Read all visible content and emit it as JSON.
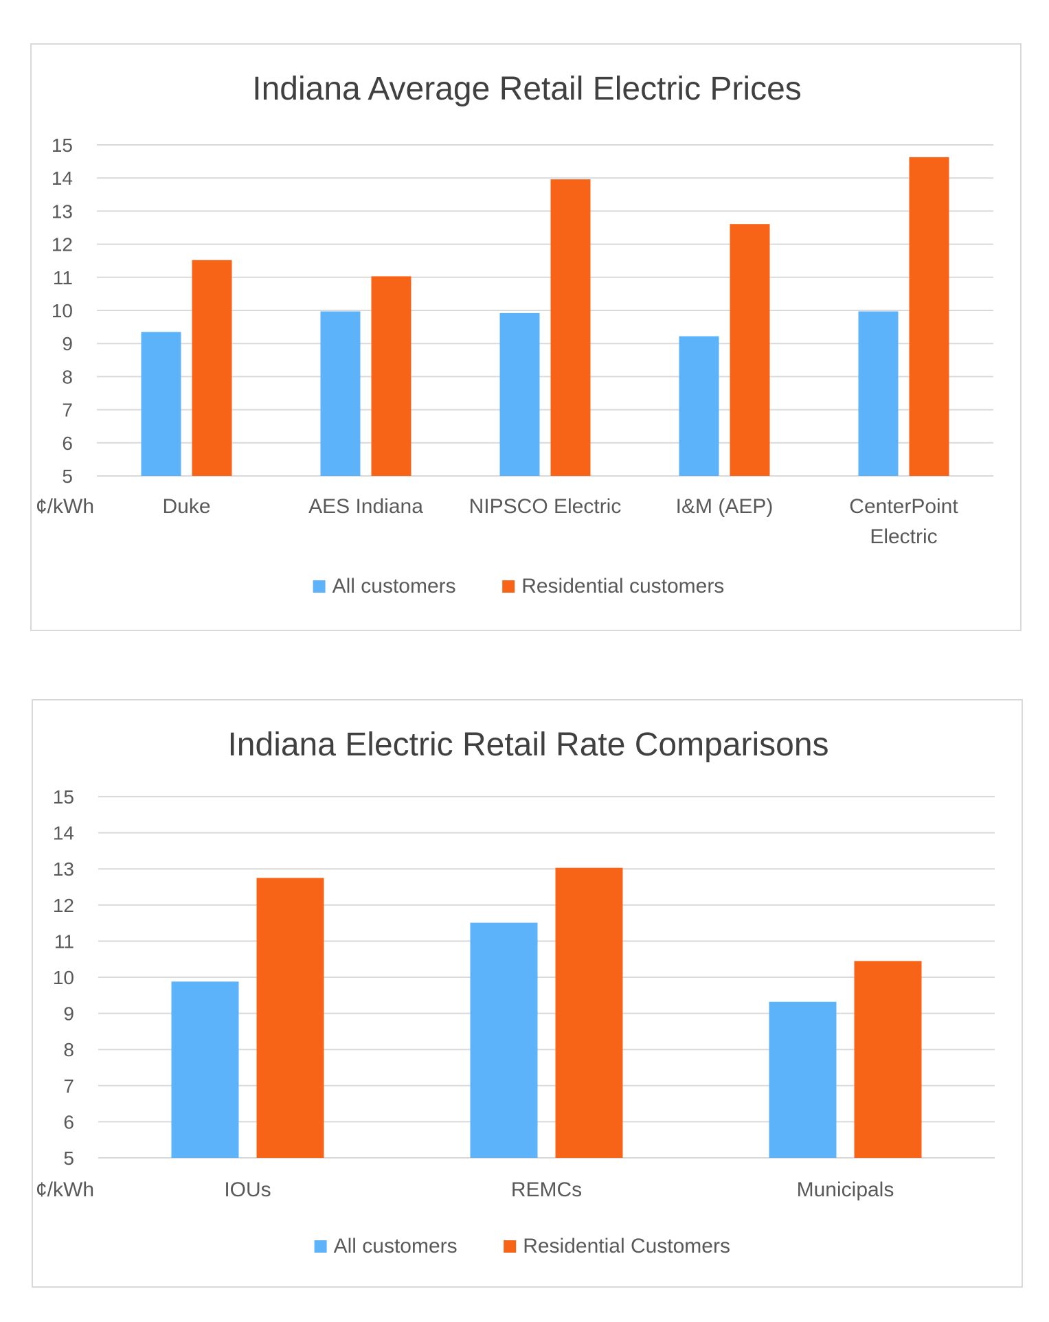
{
  "colors": {
    "all_customers": "#5DB3FA",
    "residential": "#F76418"
  },
  "chart_data": [
    {
      "type": "bar",
      "title": "Indiana Average Retail Electric Prices",
      "ylabel": "¢/kWh",
      "ylim": [
        5,
        15
      ],
      "yticks": [
        5,
        6,
        7,
        8,
        9,
        10,
        11,
        12,
        13,
        14,
        15
      ],
      "grid": true,
      "legend_position": "bottom",
      "categories": [
        [
          "Duke"
        ],
        [
          "AES Indiana"
        ],
        [
          "NIPSCO Electric"
        ],
        [
          "I&M (AEP)"
        ],
        [
          "CenterPoint",
          "Electric"
        ]
      ],
      "series": [
        {
          "name": "All customers",
          "color": "#5DB3FA",
          "values": [
            9.35,
            9.97,
            9.92,
            9.22,
            9.97
          ]
        },
        {
          "name": "Residential customers",
          "color": "#F76418",
          "values": [
            11.52,
            11.03,
            13.96,
            12.61,
            14.63
          ]
        }
      ]
    },
    {
      "type": "bar",
      "title": "Indiana Electric Retail Rate Comparisons",
      "ylabel": "¢/kWh",
      "ylim": [
        5,
        15
      ],
      "yticks": [
        5,
        6,
        7,
        8,
        9,
        10,
        11,
        12,
        13,
        14,
        15
      ],
      "grid": true,
      "legend_position": "bottom",
      "categories": [
        [
          "IOUs"
        ],
        [
          "REMCs"
        ],
        [
          "Municipals"
        ]
      ],
      "series": [
        {
          "name": "All customers",
          "color": "#5DB3FA",
          "values": [
            9.88,
            11.51,
            9.32
          ]
        },
        {
          "name": "Residential Customers",
          "color": "#F76418",
          "values": [
            12.75,
            13.03,
            10.45
          ]
        }
      ]
    }
  ]
}
